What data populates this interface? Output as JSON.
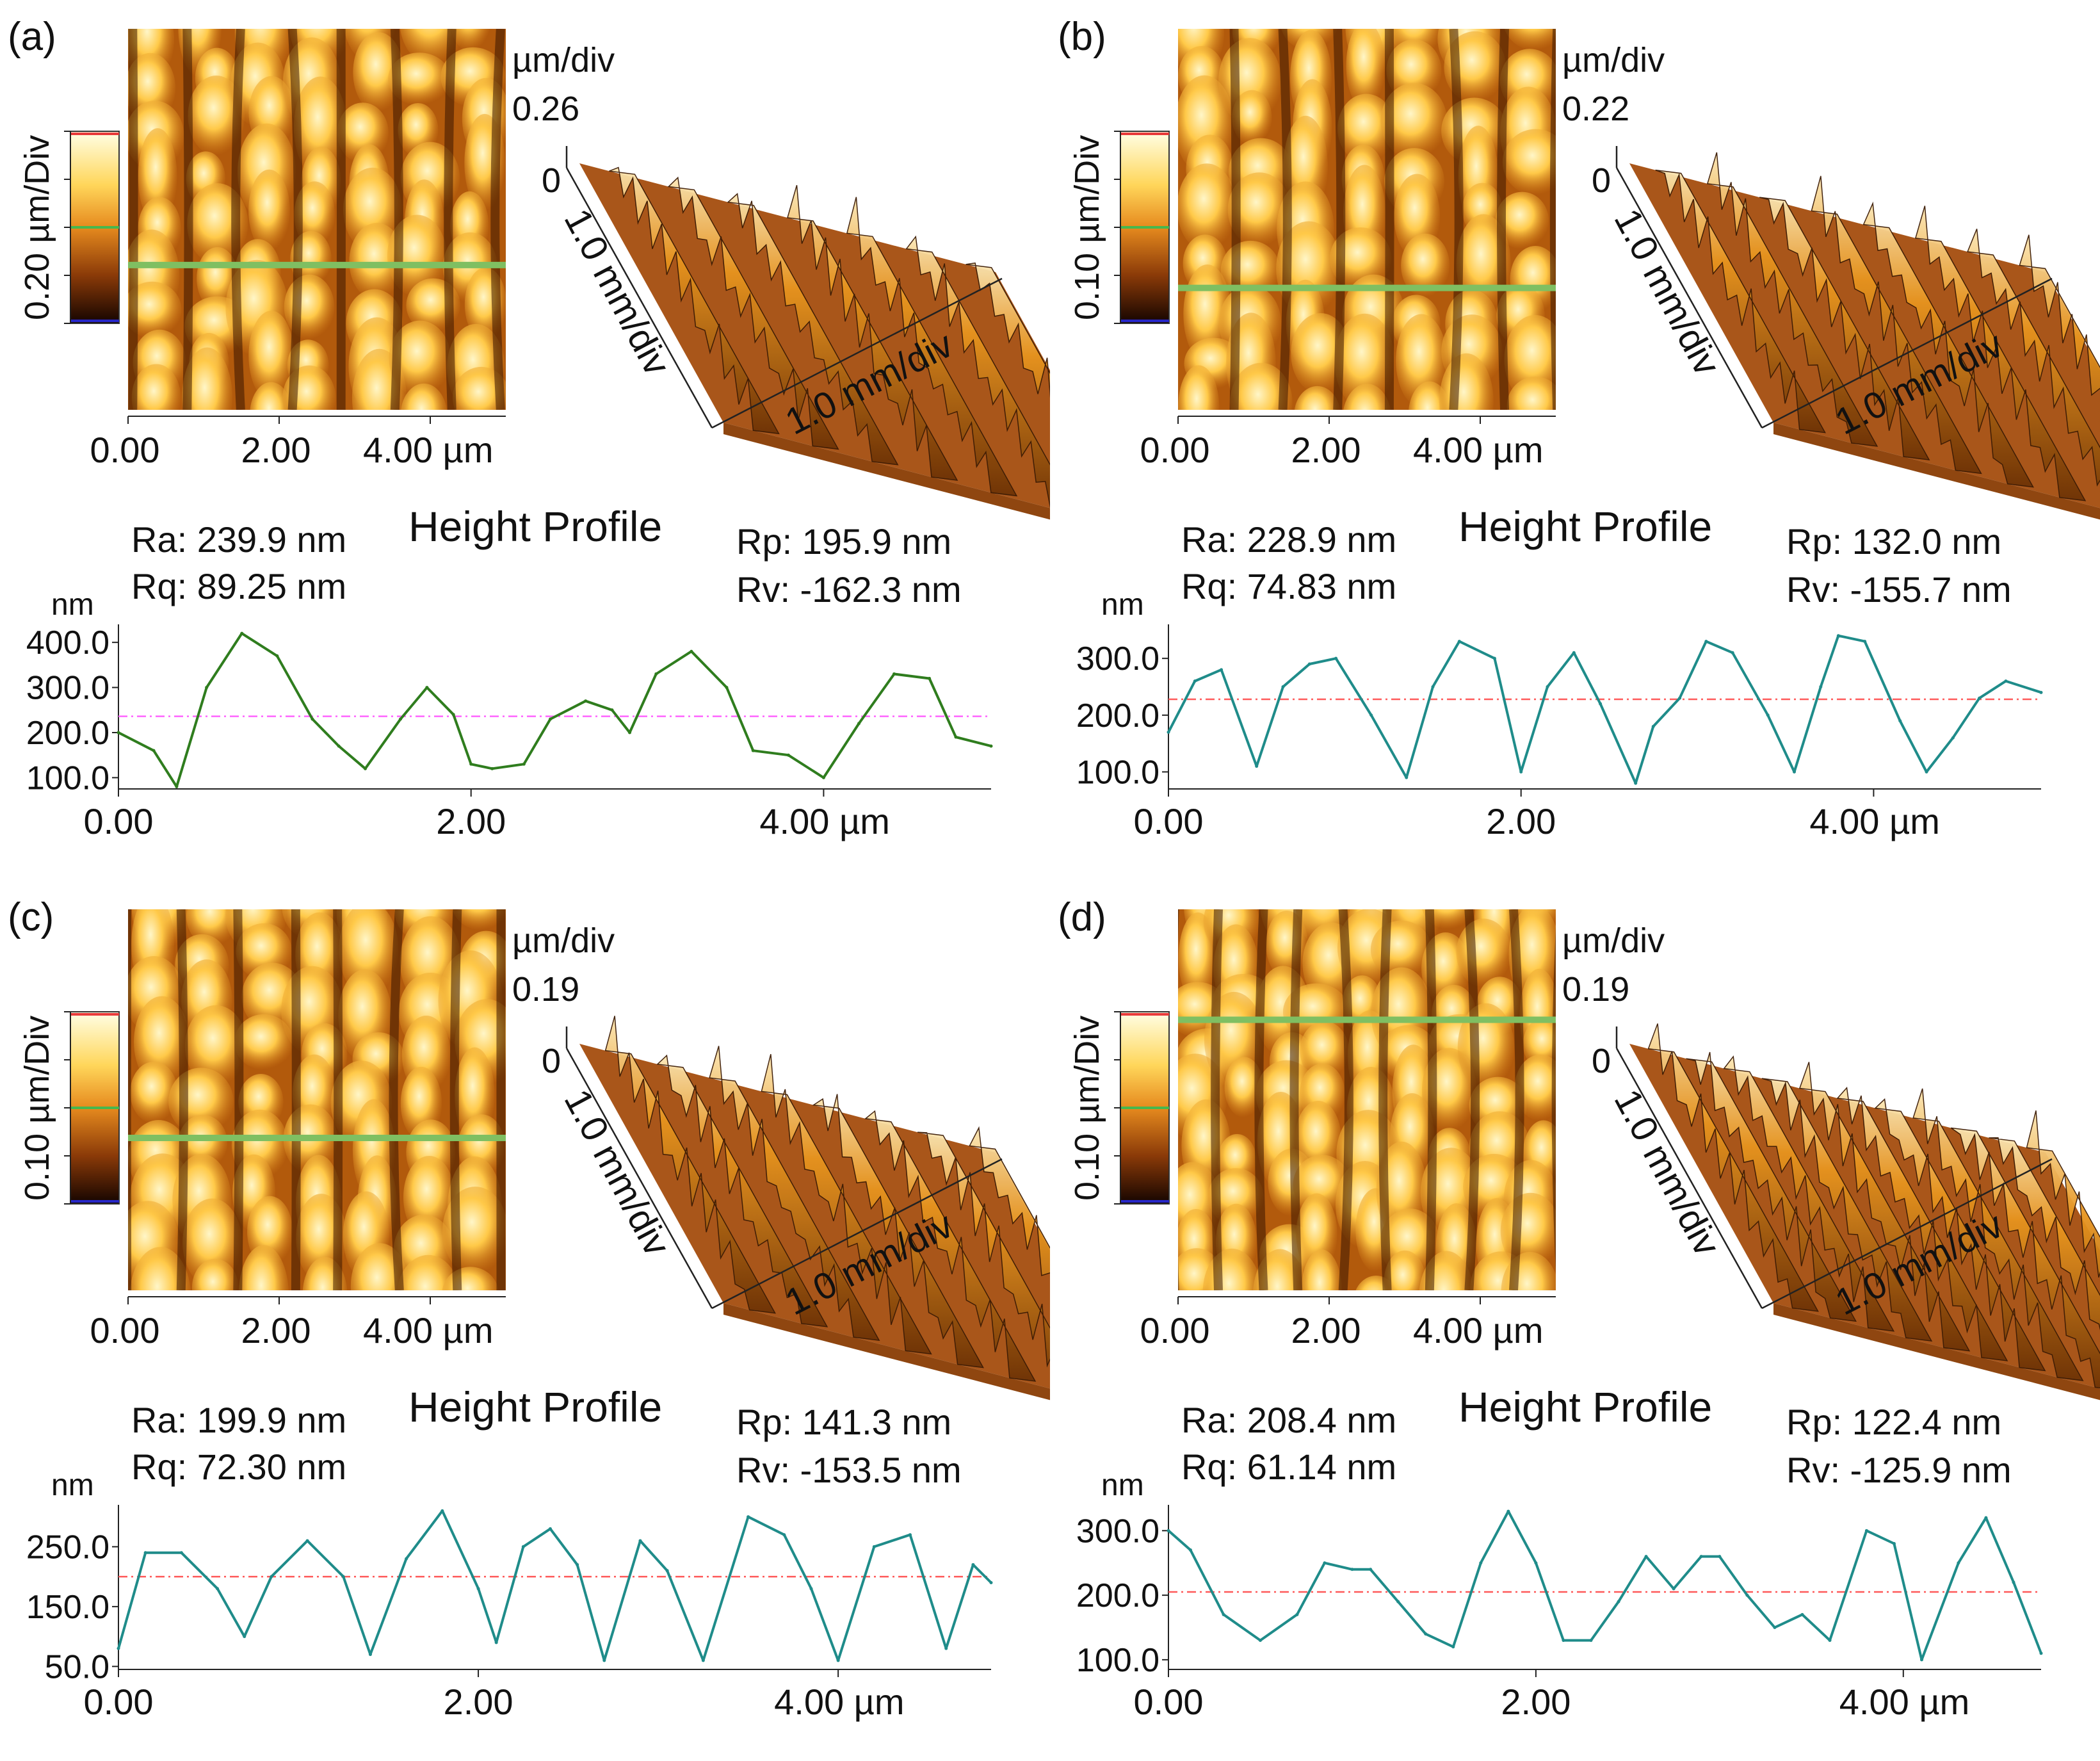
{
  "figure": {
    "colors": {
      "text": "#111111",
      "heading": "#1a1ad6",
      "scale_top": "#e83a3a",
      "scale_mid": "#46b84e",
      "scale_bottom": "#2727c8"
    },
    "icons": {
      "scale_bar": "afm-colour-scale-icon",
      "surface": "afm-3d-surface-icon"
    }
  },
  "chart_data": [
    {
      "type": "line",
      "panel_label": "(a)",
      "map": {
        "scale_label": "0.20 µm/Div",
        "x_ticks": [
          "0.00",
          "2.00",
          "4.00 µm"
        ],
        "profile_line_position": 0.62
      },
      "surface": {
        "z_unit": "µm/div",
        "z_max": "0.26",
        "z_min": "0",
        "y_axis_label": "1.0 mm/div",
        "x_axis_label": "1.0 mm/div",
        "feature_density": 7
      },
      "profile": {
        "title": "Height Profile",
        "ylabel": "nm",
        "xlabel": "µm",
        "y_ticks": [
          "400.0",
          "300.0",
          "200.0",
          "100.0"
        ],
        "x_ticks": [
          "0.00",
          "2.00",
          "4.00 µm"
        ],
        "xlim": [
          0,
          4.95
        ],
        "ylim": [
          75,
          440
        ],
        "mean_line": 236,
        "line_color": "#2f7d1e",
        "mean_color": "#ff66ff",
        "x": [
          0.0,
          0.2,
          0.33,
          0.5,
          0.7,
          0.9,
          1.1,
          1.25,
          1.4,
          1.6,
          1.75,
          1.9,
          2.0,
          2.12,
          2.3,
          2.45,
          2.65,
          2.8,
          2.9,
          3.05,
          3.25,
          3.45,
          3.6,
          3.8,
          4.0,
          4.2,
          4.4,
          4.6,
          4.75,
          4.95
        ],
        "values": [
          200,
          160,
          80,
          300,
          420,
          370,
          230,
          170,
          120,
          230,
          300,
          240,
          130,
          120,
          130,
          230,
          270,
          250,
          200,
          330,
          380,
          300,
          160,
          150,
          100,
          220,
          330,
          320,
          190,
          170
        ]
      },
      "stats": {
        "ra": "Ra: 239.9 nm",
        "rq": "Rq: 89.25 nm",
        "rp": "Rp: 195.9 nm",
        "rv": "Rv: -162.3 nm"
      }
    },
    {
      "type": "line",
      "panel_label": "(b)",
      "map": {
        "scale_label": "0.10 µm/Div",
        "x_ticks": [
          "0.00",
          "2.00",
          "4.00 µm"
        ],
        "profile_line_position": 0.68
      },
      "surface": {
        "z_unit": "µm/div",
        "z_max": "0.22",
        "z_min": "0",
        "y_axis_label": "1.0 mm/div",
        "x_axis_label": "1.0 mm/div",
        "feature_density": 8
      },
      "profile": {
        "title": "Height Profile",
        "ylabel": "nm",
        "xlabel": "µm",
        "y_ticks": [
          "300.0",
          "200.0",
          "100.0"
        ],
        "x_ticks": [
          "0.00",
          "2.00",
          "4.00 µm"
        ],
        "xlim": [
          0,
          4.95
        ],
        "ylim": [
          70,
          360
        ],
        "mean_line": 228,
        "line_color": "#1f8c8a",
        "mean_color": "#ff5a5a",
        "x": [
          0.0,
          0.15,
          0.3,
          0.5,
          0.65,
          0.8,
          0.95,
          1.15,
          1.35,
          1.5,
          1.65,
          1.85,
          2.0,
          2.15,
          2.3,
          2.45,
          2.65,
          2.75,
          2.9,
          3.05,
          3.2,
          3.4,
          3.55,
          3.7,
          3.8,
          3.95,
          4.15,
          4.3,
          4.45,
          4.6,
          4.75,
          4.95
        ],
        "values": [
          170,
          260,
          280,
          110,
          250,
          290,
          300,
          200,
          90,
          250,
          330,
          300,
          100,
          250,
          310,
          220,
          80,
          180,
          230,
          330,
          310,
          200,
          100,
          250,
          340,
          330,
          190,
          100,
          160,
          230,
          260,
          240
        ]
      },
      "stats": {
        "ra": "Ra: 228.9 nm",
        "rq": "Rq: 74.83 nm",
        "rp": "Rp: 132.0 nm",
        "rv": "Rv: -155.7 nm"
      }
    },
    {
      "type": "line",
      "panel_label": "(c)",
      "map": {
        "scale_label": "0.10 µm/Div",
        "x_ticks": [
          "0.00",
          "2.00",
          "4.00 µm"
        ],
        "profile_line_position": 0.6
      },
      "surface": {
        "z_unit": "µm/div",
        "z_max": "0.19",
        "z_min": "0",
        "y_axis_label": "1.0 mm/div",
        "x_axis_label": "1.0 mm/div",
        "feature_density": 8
      },
      "profile": {
        "title": "Height Profile",
        "ylabel": "nm",
        "xlabel": "µm",
        "y_ticks": [
          "250.0",
          "150.0",
          "50.0"
        ],
        "x_ticks": [
          "0.00",
          "2.00",
          "4.00 µm"
        ],
        "xlim": [
          0,
          4.85
        ],
        "ylim": [
          45,
          320
        ],
        "mean_line": 200,
        "line_color": "#1f8c8a",
        "mean_color": "#ff5a5a",
        "x": [
          0.0,
          0.15,
          0.35,
          0.55,
          0.7,
          0.85,
          1.05,
          1.25,
          1.4,
          1.6,
          1.8,
          2.0,
          2.1,
          2.25,
          2.4,
          2.55,
          2.7,
          2.9,
          3.05,
          3.25,
          3.5,
          3.7,
          3.85,
          4.0,
          4.2,
          4.4,
          4.6,
          4.75,
          4.85
        ],
        "values": [
          80,
          240,
          240,
          180,
          100,
          200,
          260,
          200,
          70,
          230,
          310,
          180,
          90,
          250,
          280,
          220,
          60,
          260,
          210,
          60,
          300,
          270,
          180,
          60,
          250,
          270,
          80,
          220,
          190
        ]
      },
      "stats": {
        "ra": "Ra: 199.9 nm",
        "rq": "Rq: 72.30 nm",
        "rp": "Rp: 141.3 nm",
        "rv": "Rv: -153.5 nm"
      }
    },
    {
      "type": "line",
      "panel_label": "(d)",
      "map": {
        "scale_label": "0.10 µm/Div",
        "x_ticks": [
          "0.00",
          "2.00",
          "4.00 µm"
        ],
        "profile_line_position": 0.29
      },
      "surface": {
        "z_unit": "µm/div",
        "z_max": "0.19",
        "z_min": "0",
        "y_axis_label": "1.0 mm/div",
        "x_axis_label": "1.0 mm/div",
        "feature_density": 11
      },
      "profile": {
        "title": "Height Profile",
        "ylabel": "nm",
        "xlabel": "µm",
        "y_ticks": [
          "300.0",
          "200.0",
          "100.0"
        ],
        "x_ticks": [
          "0.00",
          "2.00",
          "4.00 µm"
        ],
        "xlim": [
          0,
          4.75
        ],
        "ylim": [
          85,
          340
        ],
        "mean_line": 205,
        "line_color": "#1f8c8a",
        "mean_color": "#ff5a5a",
        "x": [
          0.0,
          0.12,
          0.3,
          0.5,
          0.7,
          0.85,
          1.0,
          1.1,
          1.25,
          1.4,
          1.55,
          1.7,
          1.85,
          2.0,
          2.15,
          2.3,
          2.45,
          2.6,
          2.75,
          2.9,
          3.0,
          3.15,
          3.3,
          3.45,
          3.6,
          3.8,
          3.95,
          4.1,
          4.3,
          4.45,
          4.6,
          4.75
        ],
        "values": [
          300,
          270,
          170,
          130,
          170,
          250,
          240,
          240,
          190,
          140,
          120,
          250,
          330,
          250,
          130,
          130,
          190,
          260,
          210,
          260,
          260,
          200,
          150,
          170,
          130,
          300,
          280,
          100,
          250,
          320,
          220,
          110
        ]
      },
      "stats": {
        "ra": "Ra: 208.4 nm",
        "rq": "Rq: 61.14 nm",
        "rp": "Rp: 122.4 nm",
        "rv": "Rv: -125.9 nm"
      }
    }
  ]
}
